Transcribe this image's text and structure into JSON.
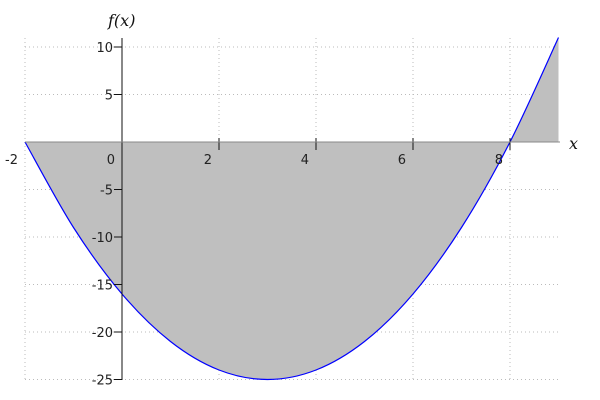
{
  "chart_data": {
    "type": "area",
    "xlabel": "x",
    "ylabel": "f(x)",
    "xlim": [
      -2,
      9
    ],
    "ylim": [
      -25,
      11
    ],
    "grid": true,
    "x_ticks": [
      "-2",
      "0",
      "2",
      "4",
      "6",
      "8"
    ],
    "y_ticks": [
      "10",
      "5",
      "-5",
      "-10",
      "-15",
      "-20",
      "-25"
    ],
    "series": [
      {
        "x": [
          -2,
          -1,
          0,
          1,
          2,
          3,
          4,
          5,
          6,
          7,
          8,
          9
        ],
        "y": [
          0,
          -9,
          -16,
          -21,
          -24,
          -25,
          -24,
          -21,
          -16,
          -9,
          0,
          11
        ]
      }
    ],
    "colors": {
      "line": "#0000ff",
      "fill": "#bfbfbf"
    }
  }
}
